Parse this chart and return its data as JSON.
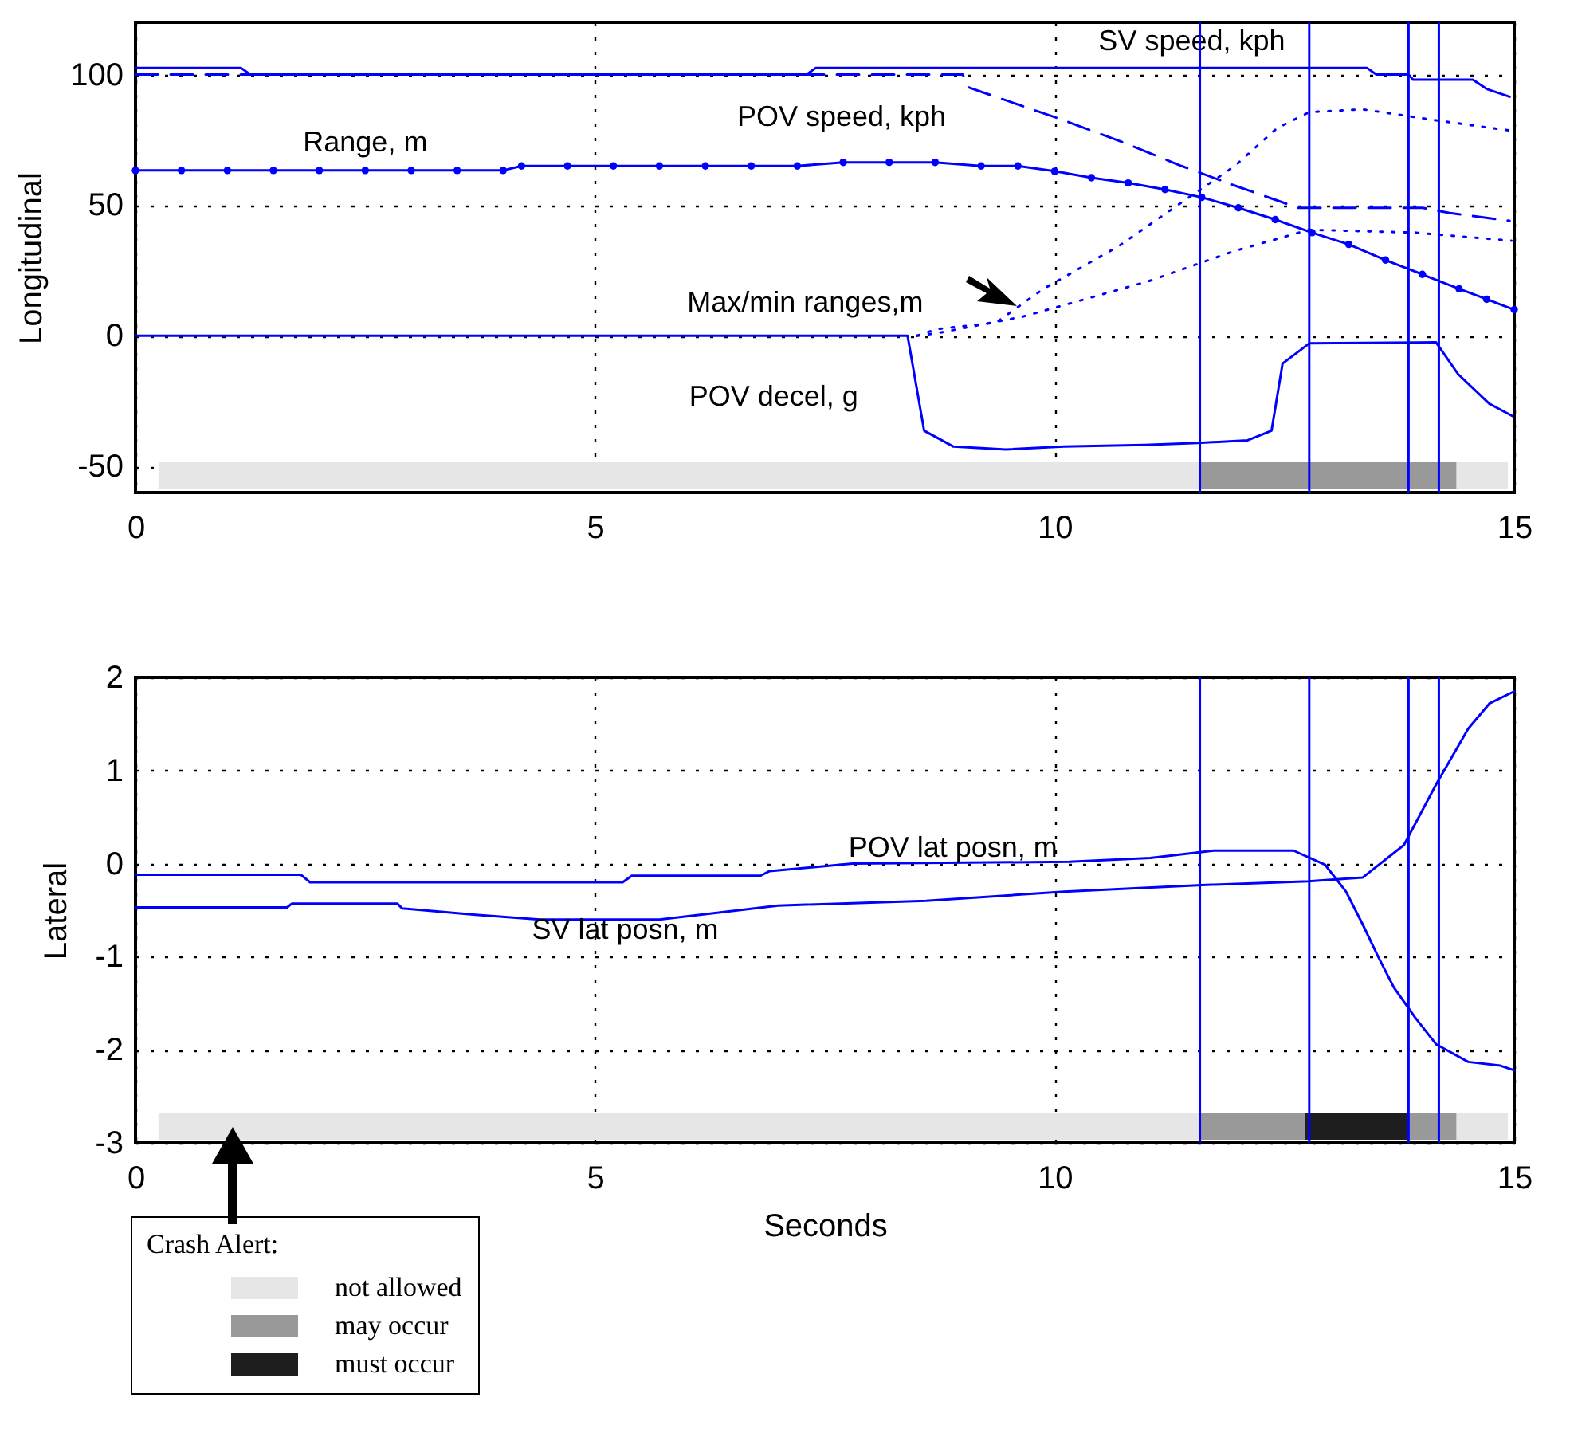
{
  "chart_data": [
    {
      "type": "line",
      "ylabel": "Longitudinal",
      "xlim": [
        0,
        15
      ],
      "xticks": [
        0,
        5,
        10,
        15
      ],
      "ylim": [
        -60,
        120
      ],
      "yticks": [
        -50,
        0,
        50,
        100
      ],
      "grid": true,
      "series": [
        {
          "name": "SV speed, kph",
          "color": "#0000ff",
          "line_style": "solid",
          "x": [
            0,
            1.15,
            1.25,
            7.3,
            7.4,
            13.4,
            13.5,
            13.85,
            13.9,
            14.55,
            14.7,
            14.95
          ],
          "values": [
            102.5,
            102.5,
            100,
            100,
            102.5,
            102.5,
            100,
            100,
            98,
            98,
            94.5,
            91.5
          ]
        },
        {
          "name": "POV speed, kph",
          "color": "#0000ff",
          "line_style": "dashed",
          "x": [
            0,
            9.0,
            9.07,
            10.1,
            10.75,
            11.38,
            12.0,
            12.65,
            14.0,
            14.3,
            14.95
          ],
          "values": [
            100,
            100,
            95,
            82.5,
            74,
            65,
            57,
            49,
            49,
            47,
            44
          ]
        },
        {
          "name": "Range, m",
          "color": "#0000ff",
          "line_style": "solid",
          "marker": "circle",
          "x": [
            0,
            0.5,
            1,
            1.5,
            2,
            2.5,
            3,
            3.5,
            4,
            4.2,
            4.7,
            5.2,
            5.7,
            6.2,
            6.7,
            7.2,
            7.7,
            8.2,
            8.7,
            9.2,
            9.6,
            10,
            10.4,
            10.8,
            11.2,
            11.6,
            12.0,
            12.4,
            12.8,
            13.2,
            13.6,
            14.0,
            14.4,
            14.7,
            15
          ],
          "values": [
            63.3,
            63.3,
            63.3,
            63.3,
            63.3,
            63.3,
            63.3,
            63.3,
            63.3,
            65,
            65,
            65,
            65,
            65,
            65,
            65,
            66.4,
            66.4,
            66.4,
            65,
            65,
            63,
            60.5,
            58.5,
            56,
            53,
            49,
            44.5,
            39.5,
            35,
            29,
            23.5,
            18,
            14,
            10
          ]
        },
        {
          "name": "Max/min ranges,m",
          "color": "#0000ff",
          "line_style": "dotted",
          "x": [
            8.5,
            8.72,
            9.36,
            9.88,
            10.7,
            11.38,
            11.96,
            12.42,
            12.77,
            13.35,
            14.15,
            14.97
          ],
          "values": [
            0,
            2.6,
            5,
            18,
            34.4,
            51,
            65,
            79.5,
            85.6,
            86.7,
            82.5,
            78.5
          ]
        },
        {
          "color": "#0000ff",
          "line_style": "dotted",
          "x": [
            8.5,
            8.72,
            9.65,
            10.22,
            11.03,
            11.96,
            12.77,
            13.93,
            14.97
          ],
          "values": [
            0,
            1,
            7.3,
            12.9,
            21,
            32.5,
            40.6,
            39.5,
            36.4
          ]
        },
        {
          "name": "POV decel, g",
          "color": "#0000ff",
          "line_style": "solid",
          "x": [
            0,
            8.4,
            8.58,
            8.9,
            9.47,
            10.1,
            10.98,
            11.56,
            12.1,
            12.36,
            12.48,
            12.77,
            14.15,
            14.39,
            14.73,
            14.98
          ],
          "values": [
            0,
            0,
            -36.3,
            -42.4,
            -43.5,
            -42.4,
            -41.8,
            -41,
            -40,
            -36.3,
            -10.6,
            -2.9,
            -2.5,
            -14.7,
            -26,
            -30.7
          ]
        }
      ],
      "ref_lines": [
        {
          "axis": "x",
          "value": 11.58,
          "color": "#0000ff"
        },
        {
          "axis": "x",
          "value": 12.77,
          "color": "#0000ff"
        },
        {
          "axis": "x",
          "value": 13.85,
          "color": "#0000ff"
        },
        {
          "axis": "x",
          "value": 14.18,
          "color": "#0000ff"
        }
      ],
      "bands": [
        {
          "axis": "x",
          "from": 0.25,
          "to": 14.93,
          "color": "#e6e6e6"
        },
        {
          "axis": "x",
          "from": 11.58,
          "to": 14.37,
          "color": "#999999"
        }
      ]
    },
    {
      "type": "line",
      "xlabel": "Seconds",
      "ylabel": "Lateral",
      "xlim": [
        0,
        15
      ],
      "xticks": [
        0,
        5,
        10,
        15
      ],
      "ylim": [
        -3,
        2
      ],
      "yticks": [
        -3,
        -2,
        -1,
        0,
        1,
        2
      ],
      "grid": true,
      "legend": "bottom left",
      "legend_title": "Crash Alert:",
      "series": [
        {
          "name": "POV lat posn, m",
          "color": "#0000ff",
          "line_style": "solid",
          "x": [
            0,
            1.8,
            1.9,
            5.3,
            5.4,
            6.8,
            6.9,
            7.8,
            10.16,
            11.04,
            11.73,
            12.6,
            12.94,
            13.17,
            13.35,
            13.52,
            13.69,
            13.92,
            14.15,
            14.5,
            14.85,
            15
          ],
          "values": [
            -0.12,
            -0.12,
            -0.2,
            -0.2,
            -0.13,
            -0.13,
            -0.08,
            0.0,
            0.02,
            0.06,
            0.14,
            0.14,
            -0.01,
            -0.3,
            -0.65,
            -1.0,
            -1.33,
            -1.65,
            -1.94,
            -2.13,
            -2.17,
            -2.22
          ]
        },
        {
          "name": "SV lat posn, m",
          "color": "#0000ff",
          "line_style": "solid",
          "x": [
            0,
            1.65,
            1.7,
            2.85,
            2.9,
            3.7,
            4.4,
            5.7,
            6.99,
            8.6,
            10.1,
            11.6,
            12.76,
            13.35,
            13.8,
            14.15,
            14.5,
            14.73,
            15
          ],
          "values": [
            -0.47,
            -0.47,
            -0.43,
            -0.43,
            -0.48,
            -0.55,
            -0.6,
            -0.6,
            -0.45,
            -0.4,
            -0.3,
            -0.23,
            -0.19,
            -0.15,
            0.2,
            0.85,
            1.45,
            1.72,
            1.85
          ]
        }
      ],
      "ref_lines": [
        {
          "axis": "x",
          "value": 11.58,
          "color": "#0000ff"
        },
        {
          "axis": "x",
          "value": 12.77,
          "color": "#0000ff"
        },
        {
          "axis": "x",
          "value": 13.85,
          "color": "#0000ff"
        },
        {
          "axis": "x",
          "value": 14.18,
          "color": "#0000ff"
        }
      ],
      "bands": [
        {
          "axis": "x",
          "from": 0.25,
          "to": 14.93,
          "label": "not allowed",
          "color": "#e6e6e6"
        },
        {
          "axis": "x",
          "from": 11.58,
          "to": 12.72,
          "label": "may occur",
          "color": "#999999"
        },
        {
          "axis": "x",
          "from": 12.72,
          "to": 13.84,
          "label": "must occur",
          "color": "#1e1e1e"
        },
        {
          "axis": "x",
          "from": 13.84,
          "to": 14.37,
          "color": "#999999"
        }
      ]
    }
  ]
}
